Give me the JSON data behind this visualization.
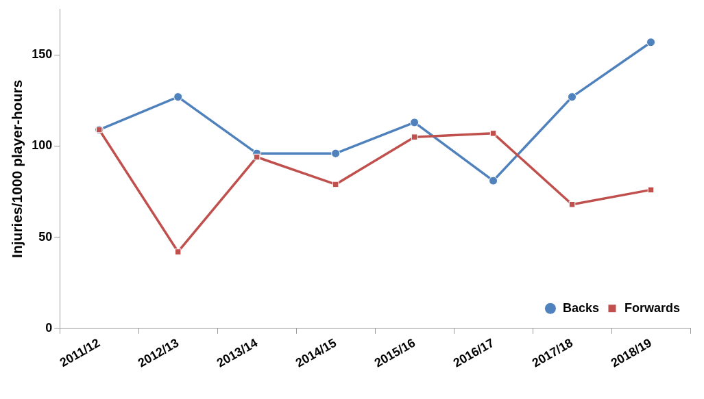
{
  "chart_data": {
    "type": "line",
    "ylabel": "Injuries/1000 player-hours",
    "categories": [
      "2011/12",
      "2012/13",
      "2013/14",
      "2014/15",
      "2015/16",
      "2016/17",
      "2017/18",
      "2018/19"
    ],
    "series": [
      {
        "name": "Backs",
        "color": "#4f81bd",
        "marker": "circle",
        "values": [
          109,
          127,
          96,
          96,
          113,
          81,
          127,
          157
        ]
      },
      {
        "name": "Forwards",
        "color": "#c0504d",
        "marker": "square",
        "values": [
          109,
          42,
          94,
          79,
          105,
          107,
          68,
          76
        ]
      }
    ],
    "ylim": [
      0,
      175
    ],
    "yticks": [
      0,
      50,
      100,
      150
    ],
    "grid": false,
    "legend": "bottom right"
  }
}
